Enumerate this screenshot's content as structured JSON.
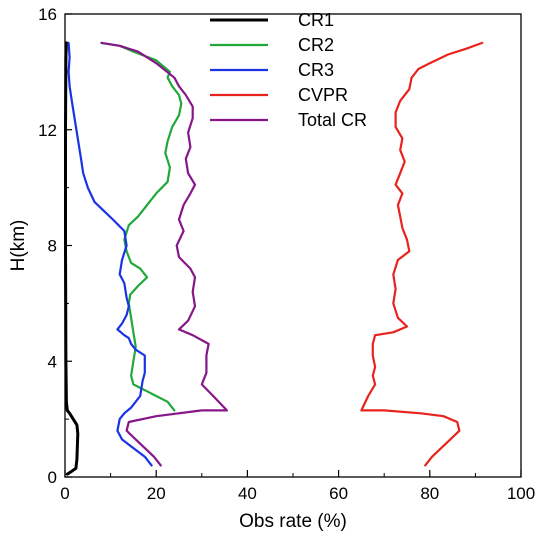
{
  "chart_data": {
    "type": "line",
    "xlabel": "Obs rate (%)",
    "ylabel": "H(km)",
    "xlim": [
      0,
      100
    ],
    "ylim": [
      0,
      16
    ],
    "xticks": [
      0,
      20,
      40,
      60,
      80,
      100
    ],
    "yticks": [
      0,
      4,
      8,
      12,
      16
    ],
    "legend_position": "top-center",
    "series": [
      {
        "name": "CR1",
        "color": "#000000",
        "points": [
          [
            0.5,
            0.1
          ],
          [
            1.5,
            0.2
          ],
          [
            2.4,
            0.3
          ],
          [
            2.6,
            0.6
          ],
          [
            2.7,
            1.0
          ],
          [
            2.8,
            1.5
          ],
          [
            2.6,
            1.8
          ],
          [
            1.8,
            2.0
          ],
          [
            1.0,
            2.2
          ],
          [
            0.5,
            2.3
          ],
          [
            0.3,
            2.6
          ],
          [
            0.2,
            4.0
          ],
          [
            0.1,
            8.0
          ],
          [
            0.1,
            12.0
          ],
          [
            0.2,
            14.5
          ],
          [
            0.3,
            15.0
          ]
        ]
      },
      {
        "name": "CR2",
        "color": "#22a83a",
        "points": [
          [
            24.0,
            2.3
          ],
          [
            22.5,
            2.6
          ],
          [
            20.0,
            2.8
          ],
          [
            17.5,
            3.0
          ],
          [
            15.0,
            3.2
          ],
          [
            14.5,
            3.5
          ],
          [
            15.0,
            4.0
          ],
          [
            15.5,
            4.5
          ],
          [
            15.0,
            5.0
          ],
          [
            14.5,
            5.5
          ],
          [
            14.0,
            6.0
          ],
          [
            14.3,
            6.3
          ],
          [
            16.0,
            6.6
          ],
          [
            18.0,
            6.9
          ],
          [
            16.5,
            7.2
          ],
          [
            14.5,
            7.4
          ],
          [
            13.5,
            7.8
          ],
          [
            13.0,
            8.2
          ],
          [
            14.0,
            8.7
          ],
          [
            16.0,
            9.0
          ],
          [
            18.5,
            9.5
          ],
          [
            20.0,
            9.8
          ],
          [
            22.5,
            10.2
          ],
          [
            23.0,
            10.7
          ],
          [
            22.0,
            11.2
          ],
          [
            22.5,
            11.6
          ],
          [
            23.5,
            12.1
          ],
          [
            25.0,
            12.5
          ],
          [
            25.5,
            12.9
          ],
          [
            25.0,
            13.2
          ],
          [
            23.5,
            13.5
          ],
          [
            22.5,
            13.8
          ],
          [
            23.0,
            14.0
          ],
          [
            20.0,
            14.4
          ],
          [
            15.0,
            14.7
          ],
          [
            12.0,
            14.9
          ],
          [
            8.0,
            15.0
          ]
        ]
      },
      {
        "name": "CR3",
        "color": "#1a33e6",
        "points": [
          [
            19.0,
            0.4
          ],
          [
            17.5,
            0.7
          ],
          [
            15.0,
            1.0
          ],
          [
            12.5,
            1.3
          ],
          [
            11.5,
            1.6
          ],
          [
            12.0,
            2.0
          ],
          [
            13.0,
            2.2
          ],
          [
            14.5,
            2.4
          ],
          [
            16.5,
            2.8
          ],
          [
            17.0,
            3.3
          ],
          [
            17.5,
            3.6
          ],
          [
            17.5,
            4.2
          ],
          [
            15.5,
            4.4
          ],
          [
            14.5,
            4.6
          ],
          [
            14.0,
            4.8
          ],
          [
            13.0,
            4.9
          ],
          [
            11.5,
            5.1
          ],
          [
            12.5,
            5.3
          ],
          [
            13.5,
            5.6
          ],
          [
            14.0,
            5.9
          ],
          [
            13.5,
            6.2
          ],
          [
            13.0,
            6.7
          ],
          [
            12.0,
            7.0
          ],
          [
            12.5,
            7.5
          ],
          [
            13.5,
            8.0
          ],
          [
            13.0,
            8.5
          ],
          [
            10.5,
            8.9
          ],
          [
            8.5,
            9.2
          ],
          [
            6.5,
            9.5
          ],
          [
            5.0,
            10.0
          ],
          [
            4.0,
            10.5
          ],
          [
            3.5,
            11.0
          ],
          [
            3.0,
            11.5
          ],
          [
            2.5,
            12.0
          ],
          [
            2.0,
            12.5
          ],
          [
            1.5,
            13.0
          ],
          [
            1.0,
            13.5
          ],
          [
            0.8,
            14.0
          ],
          [
            1.0,
            14.5
          ],
          [
            0.8,
            15.0
          ]
        ]
      },
      {
        "name": "CVPR",
        "color": "#e8231e",
        "points": [
          [
            79.0,
            0.4
          ],
          [
            80.5,
            0.7
          ],
          [
            82.5,
            1.0
          ],
          [
            84.5,
            1.3
          ],
          [
            86.5,
            1.6
          ],
          [
            86.0,
            1.9
          ],
          [
            83.0,
            2.1
          ],
          [
            78.0,
            2.2
          ],
          [
            70.0,
            2.3
          ],
          [
            65.0,
            2.3
          ],
          [
            66.5,
            2.8
          ],
          [
            68.0,
            3.2
          ],
          [
            67.5,
            3.5
          ],
          [
            68.0,
            3.8
          ],
          [
            67.5,
            4.2
          ],
          [
            67.5,
            4.6
          ],
          [
            68.0,
            4.9
          ],
          [
            72.0,
            5.0
          ],
          [
            75.0,
            5.2
          ],
          [
            73.0,
            5.5
          ],
          [
            72.0,
            6.0
          ],
          [
            72.5,
            6.5
          ],
          [
            72.0,
            7.0
          ],
          [
            73.0,
            7.5
          ],
          [
            75.5,
            7.8
          ],
          [
            75.0,
            8.2
          ],
          [
            74.0,
            8.6
          ],
          [
            73.5,
            9.0
          ],
          [
            73.0,
            9.4
          ],
          [
            74.0,
            9.8
          ],
          [
            72.5,
            10.1
          ],
          [
            73.5,
            10.5
          ],
          [
            74.5,
            10.9
          ],
          [
            73.5,
            11.3
          ],
          [
            74.0,
            11.7
          ],
          [
            72.5,
            12.1
          ],
          [
            72.5,
            12.6
          ],
          [
            73.5,
            13.0
          ],
          [
            75.5,
            13.4
          ],
          [
            76.0,
            13.8
          ],
          [
            77.5,
            14.1
          ],
          [
            80.0,
            14.3
          ],
          [
            84.0,
            14.6
          ],
          [
            88.0,
            14.8
          ],
          [
            91.5,
            15.0
          ]
        ]
      },
      {
        "name": "Total CR",
        "color": "#86168a",
        "points": [
          [
            21.0,
            0.4
          ],
          [
            19.5,
            0.7
          ],
          [
            17.5,
            1.0
          ],
          [
            15.5,
            1.3
          ],
          [
            13.5,
            1.6
          ],
          [
            14.0,
            1.9
          ],
          [
            20.0,
            2.1
          ],
          [
            30.0,
            2.3
          ],
          [
            35.5,
            2.3
          ],
          [
            32.5,
            2.8
          ],
          [
            30.0,
            3.2
          ],
          [
            31.0,
            3.6
          ],
          [
            31.0,
            4.2
          ],
          [
            31.5,
            4.6
          ],
          [
            28.0,
            4.9
          ],
          [
            25.0,
            5.1
          ],
          [
            27.0,
            5.4
          ],
          [
            28.5,
            5.9
          ],
          [
            28.0,
            6.4
          ],
          [
            28.5,
            6.9
          ],
          [
            27.5,
            7.2
          ],
          [
            25.0,
            7.6
          ],
          [
            24.5,
            8.0
          ],
          [
            26.0,
            8.5
          ],
          [
            25.0,
            8.9
          ],
          [
            26.0,
            9.4
          ],
          [
            27.5,
            9.8
          ],
          [
            28.5,
            10.1
          ],
          [
            27.0,
            10.5
          ],
          [
            26.5,
            11.0
          ],
          [
            27.5,
            11.4
          ],
          [
            27.0,
            11.9
          ],
          [
            28.0,
            12.4
          ],
          [
            28.0,
            12.8
          ],
          [
            26.5,
            13.2
          ],
          [
            25.0,
            13.5
          ],
          [
            24.0,
            13.8
          ],
          [
            20.0,
            14.3
          ],
          [
            16.0,
            14.7
          ],
          [
            12.0,
            14.9
          ],
          [
            8.0,
            15.0
          ]
        ]
      }
    ]
  }
}
